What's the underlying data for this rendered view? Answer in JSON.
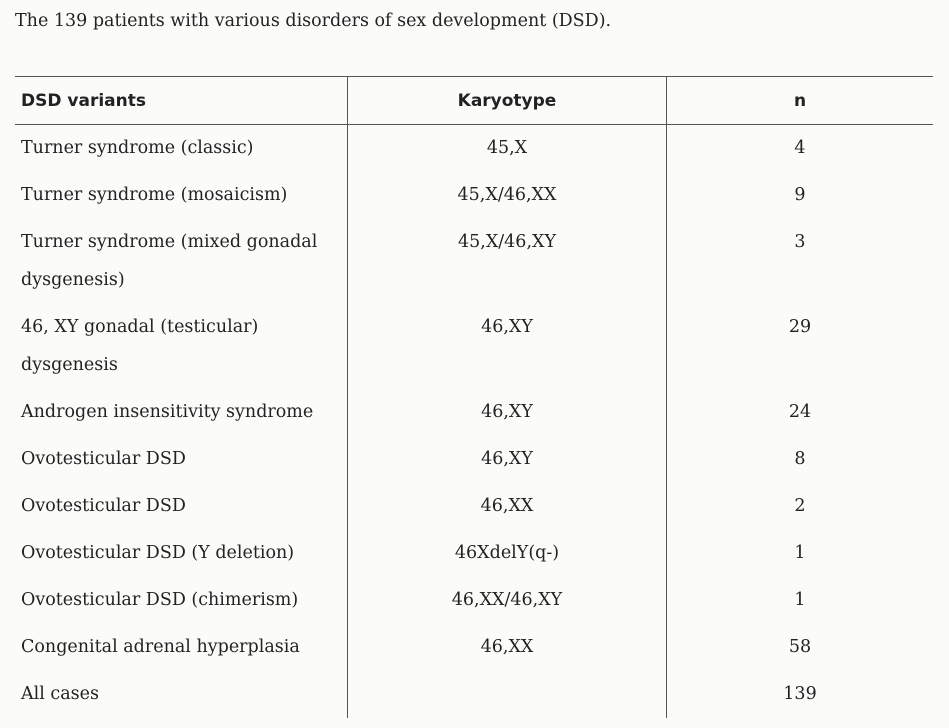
{
  "caption": "The 139 patients with various disorders of sex development (DSD).",
  "table": {
    "header": [
      "DSD variants",
      "Karyotype",
      "n"
    ],
    "rows": [
      {
        "variant": "Turner syndrome (classic)",
        "karyotype": "45,X",
        "n": 4
      },
      {
        "variant": "Turner syndrome (mosaicism)",
        "karyotype": "45,X/46,XX",
        "n": 9
      },
      {
        "variant": "Turner syndrome (mixed gonadal dysgenesis)",
        "karyotype": "45,X/46,XY",
        "n": 3
      },
      {
        "variant": "46, XY gonadal (testicular) dysgenesis",
        "karyotype": "46,XY",
        "n": 29
      },
      {
        "variant": "Androgen insensitivity syndrome",
        "karyotype": "46,XY",
        "n": 24
      },
      {
        "variant": "Ovotesticular DSD",
        "karyotype": "46,XY",
        "n": 8
      },
      {
        "variant": "Ovotesticular DSD",
        "karyotype": "46,XX",
        "n": 2
      },
      {
        "variant": "Ovotesticular DSD (Y deletion)",
        "karyotype": "46XdelY(q-)",
        "n": 1
      },
      {
        "variant": "Ovotesticular DSD (chimerism)",
        "karyotype": "46,XX/46,XY",
        "n": 1
      },
      {
        "variant": "Congenital adrenal hyperplasia",
        "karyotype": "46,XX",
        "n": 58
      },
      {
        "variant": "All cases",
        "n": 139
      }
    ]
  }
}
